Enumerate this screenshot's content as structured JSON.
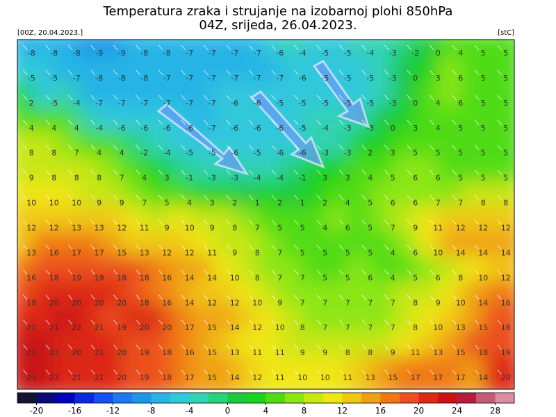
{
  "header": {
    "title": "Temperatura zraka i strujanje na izobarnoj plohi 850hPa",
    "subtitle": "04Z, srijeda, 26.04.2023.",
    "run_label": "[00Z, 20.04.2023.]",
    "unit_label": "[stC]"
  },
  "map": {
    "grid": [
      [
        -8,
        -8,
        -8,
        -9,
        -9,
        -8,
        -8,
        -7,
        -7,
        -7,
        -7,
        -6,
        -4,
        -5,
        -5,
        -4,
        -3,
        -2,
        0,
        4,
        5,
        5
      ],
      [
        -5,
        -5,
        -7,
        -8,
        -8,
        -8,
        -7,
        -7,
        -7,
        -7,
        -7,
        -7,
        -6,
        -5,
        -5,
        -5,
        -3,
        0,
        3,
        6,
        5,
        5
      ],
      [
        2,
        -5,
        -4,
        -7,
        -7,
        -7,
        -7,
        -7,
        -7,
        -6,
        -6,
        -5,
        -5,
        -5,
        -5,
        -5,
        -3,
        0,
        4,
        6,
        5,
        5
      ],
      [
        4,
        4,
        4,
        -4,
        -6,
        -6,
        -6,
        -6,
        -7,
        -6,
        -6,
        -6,
        -5,
        -4,
        -3,
        -3,
        0,
        3,
        4,
        5,
        5,
        5
      ],
      [
        8,
        8,
        7,
        4,
        4,
        -2,
        -4,
        -5,
        -5,
        -6,
        -5,
        -6,
        -6,
        -3,
        -3,
        2,
        3,
        5,
        5,
        5,
        5,
        5
      ],
      [
        9,
        8,
        8,
        8,
        7,
        4,
        3,
        -1,
        -3,
        -3,
        -4,
        -4,
        -1,
        3,
        3,
        4,
        5,
        6,
        6,
        5,
        5,
        5
      ],
      [
        10,
        10,
        10,
        9,
        9,
        7,
        5,
        4,
        3,
        2,
        1,
        2,
        1,
        2,
        4,
        5,
        6,
        6,
        7,
        7,
        8,
        8
      ],
      [
        12,
        12,
        13,
        13,
        12,
        11,
        9,
        10,
        9,
        8,
        7,
        5,
        5,
        4,
        6,
        5,
        7,
        9,
        11,
        12,
        12,
        12
      ],
      [
        13,
        16,
        17,
        17,
        15,
        13,
        12,
        12,
        11,
        9,
        8,
        7,
        5,
        5,
        5,
        5,
        4,
        6,
        10,
        14,
        14,
        14
      ],
      [
        16,
        18,
        19,
        19,
        18,
        18,
        16,
        14,
        14,
        10,
        8,
        7,
        7,
        5,
        5,
        6,
        4,
        5,
        6,
        8,
        10,
        12
      ],
      [
        18,
        20,
        20,
        20,
        20,
        18,
        16,
        14,
        12,
        12,
        10,
        9,
        7,
        7,
        7,
        7,
        7,
        8,
        9,
        10,
        14,
        16
      ],
      [
        21,
        21,
        22,
        21,
        19,
        20,
        20,
        17,
        15,
        14,
        12,
        10,
        8,
        7,
        7,
        7,
        7,
        8,
        10,
        13,
        15,
        18
      ],
      [
        23,
        23,
        20,
        21,
        20,
        19,
        18,
        16,
        15,
        13,
        11,
        11,
        9,
        9,
        8,
        8,
        9,
        11,
        13,
        15,
        18,
        19
      ],
      [
        23,
        23,
        21,
        21,
        20,
        19,
        18,
        17,
        15,
        14,
        12,
        11,
        10,
        10,
        11,
        13,
        15,
        17,
        17,
        17,
        14,
        20
      ]
    ]
  },
  "colorbar": {
    "range": [
      -22,
      30
    ],
    "step": 2,
    "colors": [
      "#141432",
      "#0a0a78",
      "#0000b4",
      "#0a28dc",
      "#1450f0",
      "#1e78f0",
      "#1e96e6",
      "#28b4e6",
      "#32c8dc",
      "#32d2b4",
      "#28d278",
      "#1ec83c",
      "#1ed21e",
      "#50dc14",
      "#8ce614",
      "#c8e614",
      "#f0e614",
      "#f0c814",
      "#f0a014",
      "#f07814",
      "#eb501e",
      "#dc2814",
      "#c81414",
      "#b41e3c",
      "#c85a78",
      "#dc8ca0"
    ],
    "ticks": [
      -20,
      -16,
      -12,
      -8,
      -4,
      0,
      4,
      8,
      12,
      16,
      20,
      24,
      28
    ]
  }
}
